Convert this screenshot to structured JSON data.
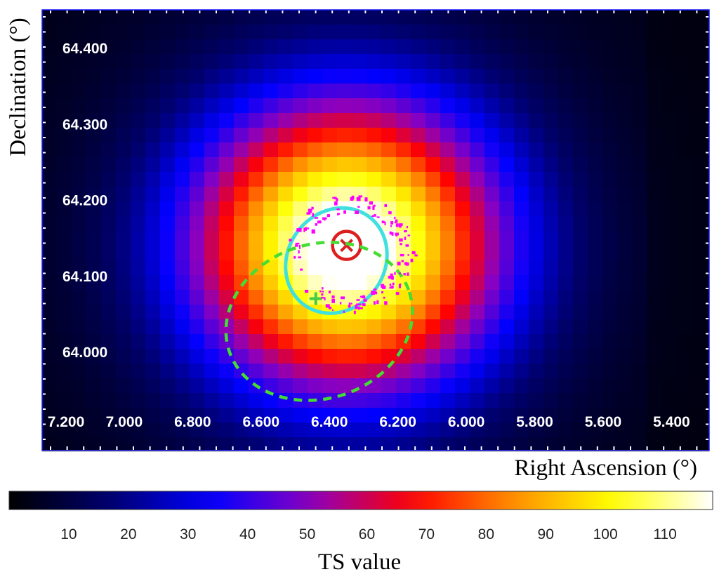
{
  "chart_data": {
    "type": "heatmap",
    "title": "",
    "xlabel": "Right Ascension (°)",
    "ylabel": "Declination (°)",
    "x_axis_reversed": true,
    "xlim": [
      7.24,
      5.29
    ],
    "ylim": [
      63.87,
      64.45
    ],
    "x_tick_labels": [
      "7.200",
      "7.000",
      "6.800",
      "6.600",
      "6.400",
      "6.200",
      "6.000",
      "5.800",
      "5.600",
      "5.400"
    ],
    "x_tick_values": [
      7.2,
      7.0,
      6.8,
      6.6,
      6.4,
      6.2,
      6.0,
      5.8,
      5.6,
      5.4
    ],
    "y_tick_labels": [
      "64.400",
      "64.300",
      "64.200",
      "64.100",
      "64.000"
    ],
    "y_tick_values": [
      64.4,
      64.3,
      64.2,
      64.1,
      64.0
    ],
    "grid": false,
    "colorbar": {
      "label": "TS value",
      "range": [
        0,
        118
      ],
      "tick_labels": [
        "10",
        "20",
        "30",
        "40",
        "50",
        "60",
        "70",
        "80",
        "90",
        "100",
        "110"
      ],
      "tick_values": [
        10,
        20,
        30,
        40,
        50,
        60,
        70,
        80,
        90,
        100,
        110
      ],
      "colormap": [
        "#000000",
        "#00006e",
        "#0000ff",
        "#8a00c0",
        "#ff0000",
        "#ff8c00",
        "#ffff00",
        "#ffffff"
      ]
    },
    "ts_peak": {
      "ra": 6.35,
      "dec": 64.14,
      "value": 118
    },
    "overlays": [
      {
        "name": "",
        "shape": "circle-x-marker",
        "color": "#dc1e1e",
        "ra": 6.35,
        "dec": 64.14
      },
      {
        "name": "",
        "shape": "plus-marker",
        "color": "#44cc44",
        "ra": 6.44,
        "dec": 64.07
      },
      {
        "name": "",
        "shape": "ellipse",
        "style": "solid",
        "color": "#3fe0e0",
        "ra": 6.38,
        "dec": 64.12
      },
      {
        "name": "",
        "shape": "ellipse",
        "style": "dashed",
        "color": "#44dd33",
        "ra": 6.43,
        "dec": 64.04
      },
      {
        "name": "",
        "shape": "shell-contour",
        "color": "#ff00ff",
        "ra": 6.34,
        "dec": 64.13
      }
    ]
  }
}
